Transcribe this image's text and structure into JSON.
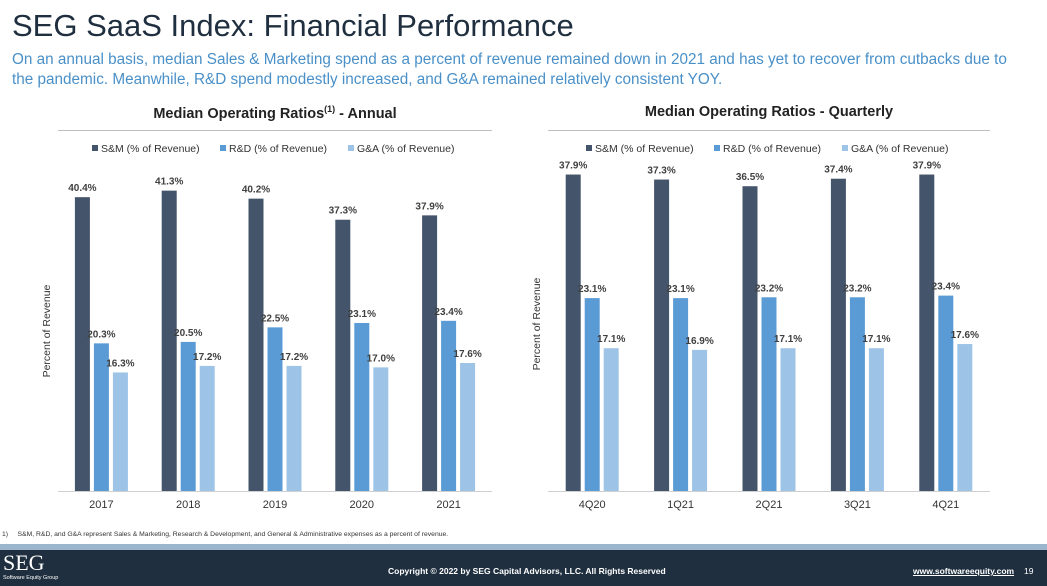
{
  "page": {
    "title": "SEG SaaS Index: Financial Performance",
    "subtitle": "On an annual basis, median Sales & Marketing spend as a percent of revenue remained down in 2021 and has yet to recover from cutbacks due to the pandemic. Meanwhile, R&D spend modestly increased, and G&A remained relatively consistent YOY.",
    "footnote_marker": "1)",
    "footnote": "S&M, R&D, and G&A represent Sales & Marketing, Research & Development, and General & Administrative expenses as a percent of revenue.",
    "copyright": "Copyright © 2022 by SEG Capital Advisors, LLC. All Rights Reserved",
    "website": "www.softwareequity.com",
    "page_number": "19",
    "logo_text": "SEG",
    "logo_subtext": "Software Equity Group"
  },
  "colors": {
    "sm": "#44546a",
    "rd": "#5b9bd5",
    "ga": "#9dc3e6",
    "title": "#1f2f3f",
    "subtitle": "#4a90c8",
    "footer": "#1f2f3f",
    "footer_band": "#9bb6cc"
  },
  "chart_data": [
    {
      "type": "bar",
      "title": "Median Operating Ratios",
      "title_superscript": "(1)",
      "title_suffix": " - Annual",
      "ylabel": "Percent of Revenue",
      "xlabel": "",
      "categories": [
        "2017",
        "2018",
        "2019",
        "2020",
        "2021"
      ],
      "series": [
        {
          "name": "S&M (% of Revenue)",
          "values": [
            40.4,
            41.3,
            40.2,
            37.3,
            37.9
          ],
          "labels": [
            "40.4%",
            "41.3%",
            "40.2%",
            "37.3%",
            "37.9%"
          ]
        },
        {
          "name": "R&D (% of Revenue)",
          "values": [
            20.3,
            20.5,
            22.5,
            23.1,
            23.4
          ],
          "labels": [
            "20.3%",
            "20.5%",
            "22.5%",
            "23.1%",
            "23.4%"
          ]
        },
        {
          "name": "G&A (% of Revenue)",
          "values": [
            16.3,
            17.2,
            17.2,
            17.0,
            17.6
          ],
          "labels": [
            "16.3%",
            "17.2%",
            "17.2%",
            "17.0%",
            "17.6%"
          ]
        }
      ],
      "ylim": [
        0,
        44
      ],
      "legend": "top",
      "grid": false
    },
    {
      "type": "bar",
      "title": "Median Operating Ratios - Quarterly",
      "ylabel": "Percent of Revenue",
      "xlabel": "",
      "categories": [
        "4Q20",
        "1Q21",
        "2Q21",
        "3Q21",
        "4Q21"
      ],
      "series": [
        {
          "name": "S&M (% of Revenue)",
          "values": [
            37.9,
            37.3,
            36.5,
            37.4,
            37.9
          ],
          "labels": [
            "37.9%",
            "37.3%",
            "36.5%",
            "37.4%",
            "37.9%"
          ]
        },
        {
          "name": "R&D (% of Revenue)",
          "values": [
            23.1,
            23.1,
            23.2,
            23.2,
            23.4
          ],
          "labels": [
            "23.1%",
            "23.1%",
            "23.2%",
            "23.2%",
            "23.4%"
          ]
        },
        {
          "name": "G&A (% of Revenue)",
          "values": [
            17.1,
            16.9,
            17.1,
            17.1,
            17.6
          ],
          "labels": [
            "17.1%",
            "16.9%",
            "17.1%",
            "17.1%",
            "17.6%"
          ]
        }
      ],
      "ylim": [
        0,
        40
      ],
      "legend": "top",
      "grid": false
    }
  ]
}
